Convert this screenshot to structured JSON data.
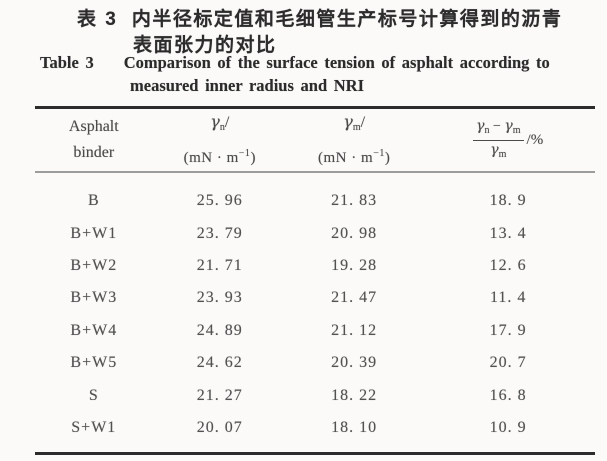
{
  "caption_zh": {
    "label": "表 3",
    "line1": "内半径标定值和毛细管生产标号计算得到的沥青",
    "line2": "表面张力的对比"
  },
  "caption_en": {
    "label": "Table 3",
    "line1": "Comparison of the surface tension of asphalt according to",
    "line2": "measured inner radius and NRI"
  },
  "table": {
    "header": {
      "col1_line1": "Asphalt",
      "col1_line2": "binder",
      "gamma": "γ",
      "sub_n": "n",
      "sub_m": "m",
      "slash": "/",
      "minus": "−",
      "unit_open": "(mN · m",
      "unit_sup": "−1",
      "unit_close": ")",
      "ratio_suffix": "/%"
    },
    "rows": [
      {
        "binder": "B",
        "gn": "25. 96",
        "gm": "21. 83",
        "diff": "18. 9"
      },
      {
        "binder": "B+W1",
        "gn": "23. 79",
        "gm": "20. 98",
        "diff": "13. 4"
      },
      {
        "binder": "B+W2",
        "gn": "21. 71",
        "gm": "19. 28",
        "diff": "12. 6"
      },
      {
        "binder": "B+W3",
        "gn": "23. 93",
        "gm": "21. 47",
        "diff": "11. 4"
      },
      {
        "binder": "B+W4",
        "gn": "24. 89",
        "gm": "21. 12",
        "diff": "17. 9"
      },
      {
        "binder": "B+W5",
        "gn": "24. 62",
        "gm": "20. 39",
        "diff": "20. 7"
      },
      {
        "binder": "S",
        "gn": "21. 27",
        "gm": "18. 22",
        "diff": "16. 8"
      },
      {
        "binder": "S+W1",
        "gn": "20. 07",
        "gm": "18. 10",
        "diff": "10. 9"
      }
    ]
  },
  "colors": {
    "page_background": "#fbfaf8",
    "rule_heavy": "#2c2c2c",
    "rule_light": "#9c9c9c",
    "text": "#4a4a4a"
  },
  "chart_data": {
    "type": "table",
    "title_zh": "表 3 内半径标定值和毛细管生产标号计算得到的沥青表面张力的对比",
    "title_en": "Table 3 Comparison of the surface tension of asphalt according to measured inner radius and NRI",
    "columns": [
      "Asphalt binder",
      "γn/(mN·m−1)",
      "γm/(mN·m−1)",
      "(γn−γm)/γm /%"
    ],
    "rows": [
      [
        "B",
        25.96,
        21.83,
        18.9
      ],
      [
        "B+W1",
        23.79,
        20.98,
        13.4
      ],
      [
        "B+W2",
        21.71,
        19.28,
        12.6
      ],
      [
        "B+W3",
        23.93,
        21.47,
        11.4
      ],
      [
        "B+W4",
        24.89,
        21.12,
        17.9
      ],
      [
        "B+W5",
        24.62,
        20.39,
        20.7
      ],
      [
        "S",
        21.27,
        18.22,
        16.8
      ],
      [
        "S+W1",
        20.07,
        18.1,
        10.9
      ]
    ]
  }
}
